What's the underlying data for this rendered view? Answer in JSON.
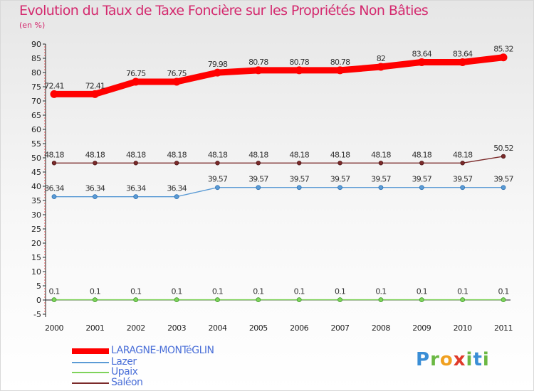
{
  "chart_data": {
    "type": "line",
    "title": "Evolution du Taux de Taxe Foncière sur les Propriétés Non Bâties",
    "ylabel": "(en %)",
    "xlabel": "",
    "ylim": [
      -5,
      90
    ],
    "yticks": [
      -5,
      0,
      5,
      10,
      15,
      20,
      25,
      30,
      35,
      40,
      45,
      50,
      55,
      60,
      65,
      70,
      75,
      80,
      85,
      90
    ],
    "grid": false,
    "categories": [
      "2000",
      "2001",
      "2002",
      "2003",
      "2004",
      "2005",
      "2006",
      "2007",
      "2008",
      "2009",
      "2010",
      "2011"
    ],
    "series": [
      {
        "name": "LARAGNE-MONTéGLIN",
        "color": "#ff0000",
        "values": [
          72.41,
          72.41,
          76.75,
          76.75,
          79.98,
          80.78,
          80.78,
          80.78,
          82,
          83.64,
          83.64,
          85.32
        ],
        "labels": [
          "72.41",
          "72.41",
          "76.75",
          "76.75",
          "79.98",
          "80.78",
          "80.78",
          "80.78",
          "82",
          "83.64",
          "83.64",
          "85.32"
        ]
      },
      {
        "name": "Lazer",
        "color": "#5b9bd5",
        "values": [
          36.34,
          36.34,
          36.34,
          36.34,
          39.57,
          39.57,
          39.57,
          39.57,
          39.57,
          39.57,
          39.57,
          39.57
        ],
        "labels": [
          "36.34",
          "36.34",
          "36.34",
          "36.34",
          "39.57",
          "39.57",
          "39.57",
          "39.57",
          "39.57",
          "39.57",
          "39.57",
          "39.57"
        ]
      },
      {
        "name": "Upaix",
        "color": "#7fd35a",
        "values": [
          0.1,
          0.1,
          0.1,
          0.1,
          0.1,
          0.1,
          0.1,
          0.1,
          0.1,
          0.1,
          0.1,
          0.1
        ],
        "labels": [
          "0.1",
          "0.1",
          "0.1",
          "0.1",
          "0.1",
          "0.1",
          "0.1",
          "0.1",
          "0.1",
          "0.1",
          "0.1",
          "0.1"
        ]
      },
      {
        "name": "Saléon",
        "color": "#7b2a2a",
        "values": [
          48.18,
          48.18,
          48.18,
          48.18,
          48.18,
          48.18,
          48.18,
          48.18,
          48.18,
          48.18,
          48.18,
          50.52
        ],
        "labels": [
          "48.18",
          "48.18",
          "48.18",
          "48.18",
          "48.18",
          "48.18",
          "48.18",
          "48.18",
          "48.18",
          "48.18",
          "48.18",
          "50.52"
        ]
      }
    ]
  },
  "logo": {
    "letters": [
      "P",
      "r",
      "o",
      "x",
      "i",
      "t",
      "i"
    ],
    "colors": [
      "#3a8ed6",
      "#6bb843",
      "#f0a020",
      "#e03a2a",
      "#6bb843",
      "#3a8ed6",
      "#6bb843"
    ]
  }
}
